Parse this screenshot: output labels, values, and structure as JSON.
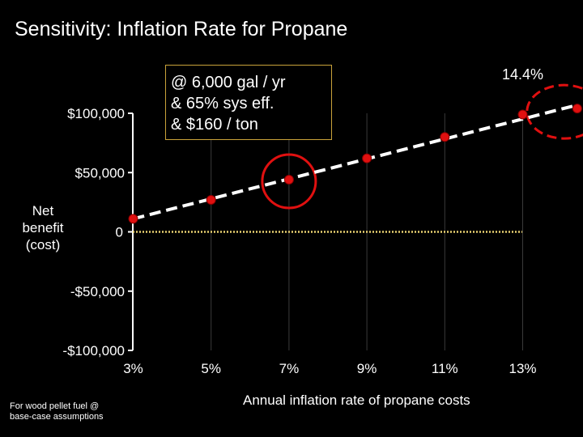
{
  "title": "Sensitivity:  Inflation Rate for Propane",
  "ylabel_lines": [
    "Net",
    "benefit",
    "(cost)"
  ],
  "footnote_lines": [
    "For wood pellet fuel @",
    "base-case assumptions"
  ],
  "callout_lines": [
    "@ 6,000 gal / yr",
    "& 65% sys eff.",
    "& $160 / ton"
  ],
  "end_label": "14.4%",
  "colors": {
    "background": "#000000",
    "point": "#e01010",
    "highlight_circle": "#e01010",
    "trend": "#ffffff",
    "zero_line": "#e8d070"
  },
  "chart_data": {
    "type": "scatter",
    "title": "Sensitivity:  Inflation Rate for Propane",
    "xlabel": "Annual inflation rate of propane costs",
    "ylabel": "Net benefit (cost)",
    "x_tick_labels": [
      "3%",
      "5%",
      "7%",
      "9%",
      "11%",
      "13%"
    ],
    "y_tick_labels": [
      "$100,000",
      "$50,000",
      "0",
      "-$50,000",
      "-$100,000"
    ],
    "y_tick_values": [
      100000,
      50000,
      0,
      -50000,
      -100000
    ],
    "xlim": [
      3,
      14.4
    ],
    "ylim": [
      -100000,
      100000
    ],
    "points": [
      {
        "x": 3,
        "y": 11000
      },
      {
        "x": 5,
        "y": 27000
      },
      {
        "x": 7,
        "y": 44000
      },
      {
        "x": 9,
        "y": 62000
      },
      {
        "x": 11,
        "y": 80000
      },
      {
        "x": 13,
        "y": 99000
      },
      {
        "x": 14.4,
        "y": 104000
      }
    ],
    "highlighted_x": [
      7,
      14.4
    ],
    "trendline": {
      "style": "dashed",
      "x": [
        3,
        14.4
      ],
      "y": [
        11000,
        107000
      ]
    }
  }
}
